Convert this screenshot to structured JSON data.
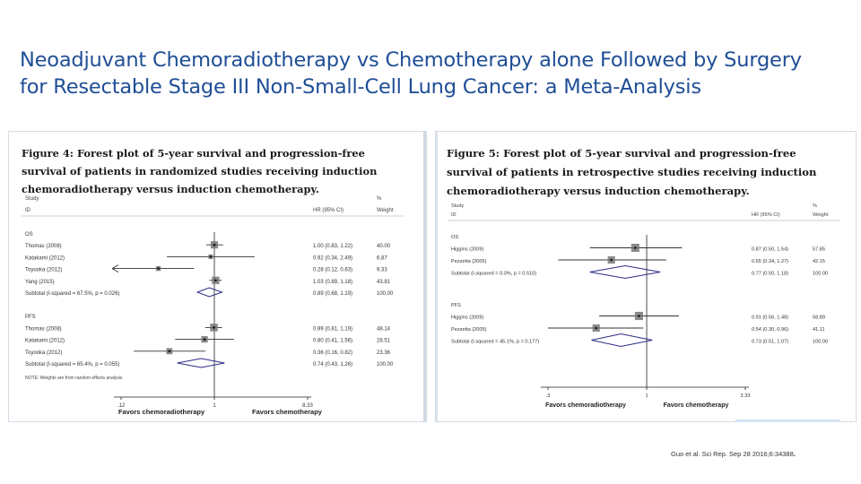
{
  "slide": {
    "title_line1": "Neoadjuvant Chemoradiotherapy vs Chemotherapy alone Followed by Surgery",
    "title_line2": "for Resectable Stage III Non-Small-Cell Lung Cancer: a Meta-Analysis",
    "citation": "Guo et al. Sci Rep. Sep 28 2016;6:34388",
    "colors": {
      "title": "#1f4e96",
      "forest_box": "#777777",
      "subtotal_diamond": "#2b2b88",
      "line": "#333333"
    }
  },
  "figure4": {
    "caption_line1": "Figure 4: Forest plot of 5-year survival and progression-free",
    "caption_line2": "survival of patients in randomized studies receiving induction",
    "caption_line3": "chemoradiotherapy versus induction chemotherapy.",
    "header": {
      "study_label": "Study",
      "id_label": "ID",
      "hr_label": "HR (95% CI)",
      "pct_label": "%",
      "weight_label": "Weight"
    },
    "groups": [
      {
        "name": "OS",
        "rows": [
          {
            "label": "Thomas (2008)",
            "hr": 1.0,
            "lo": 0.83,
            "hi": 1.22,
            "hr_text": "1.00 (0.83, 1.22)",
            "weight": "40.00"
          },
          {
            "label": "Katakami (2012)",
            "hr": 0.92,
            "lo": 0.34,
            "hi": 2.49,
            "hr_text": "0.92 (0.34, 2.49)",
            "weight": "6.87"
          },
          {
            "label": "Toyooka (2012)",
            "hr": 0.28,
            "lo": 0.12,
            "hi": 0.63,
            "hr_text": "0.28 (0.12, 0.63)",
            "weight": "9.33",
            "arrow_left": true
          },
          {
            "label": "Yang (2015)",
            "hr": 1.03,
            "lo": 0.89,
            "hi": 1.18,
            "hr_text": "1.03 (0.89, 1.18)",
            "weight": "43.81"
          }
        ],
        "subtotal": {
          "label": "Subtotal  (I-squared = 67.5%, p = 0.026)",
          "hr": 0.89,
          "lo": 0.68,
          "hi": 1.19,
          "hr_text": "0.89 (0.68, 1.19)",
          "weight": "100.00"
        }
      },
      {
        "name": "PFS",
        "rows": [
          {
            "label": "Thomas (2008)",
            "hr": 0.99,
            "lo": 0.81,
            "hi": 1.19,
            "hr_text": "0.99 (0.81, 1.19)",
            "weight": "48.14"
          },
          {
            "label": "Katakami (2012)",
            "hr": 0.8,
            "lo": 0.41,
            "hi": 1.56,
            "hr_text": "0.80 (0.41, 1.56)",
            "weight": "28.51"
          },
          {
            "label": "Toyooka (2012)",
            "hr": 0.36,
            "lo": 0.16,
            "hi": 0.82,
            "hr_text": "0.36 (0.16, 0.82)",
            "weight": "23.36"
          }
        ],
        "subtotal": {
          "label": "Subtotal  (I-squared = 65.4%, p = 0.055)",
          "hr": 0.74,
          "lo": 0.43,
          "hi": 1.26,
          "hr_text": "0.74 (0.43, 1.26)",
          "weight": "100.00"
        }
      }
    ],
    "note": "NOTE: Weights are from random effects analysis",
    "axis": {
      "min": 0.12,
      "max": 8.33,
      "ticks": [
        {
          "value": 0.12,
          "label": ".12"
        },
        {
          "value": 1,
          "label": "1"
        },
        {
          "value": 8.33,
          "label": "8.33"
        }
      ]
    },
    "favors_left": "Favors chemoradiotherapy",
    "favors_right": "Favors chemotherapy"
  },
  "figure5": {
    "caption_line1": "Figure 5: Forest plot of 5-year survival and progression-free",
    "caption_line2": "survival of patients in retrospective studies receiving induction",
    "caption_line3": "chemoradiotherapy versus induction chemotherapy.",
    "header": {
      "study_label": "Study",
      "id_label": "ID",
      "hr_label": "HR (95% CI)",
      "pct_label": "%",
      "weight_label": "Weight"
    },
    "groups": [
      {
        "name": "OS",
        "rows": [
          {
            "label": "Higgins (2009)",
            "hr": 0.87,
            "lo": 0.5,
            "hi": 1.54,
            "hr_text": "0.87 (0.50, 1.54)",
            "weight": "57.85"
          },
          {
            "label": "Pezzetta (2005)",
            "hr": 0.65,
            "lo": 0.34,
            "hi": 1.27,
            "hr_text": "0.65 (0.34, 1.27)",
            "weight": "42.15"
          }
        ],
        "subtotal": {
          "label": "Subtotal  (I-squared = 0.0%, p = 0.510)",
          "hr": 0.77,
          "lo": 0.5,
          "hi": 1.18,
          "hr_text": "0.77 (0.50, 1.18)",
          "weight": "100.00"
        }
      },
      {
        "name": "PFS",
        "rows": [
          {
            "label": "Higgins (2009)",
            "hr": 0.91,
            "lo": 0.56,
            "hi": 1.48,
            "hr_text": "0.91 (0.56, 1.48)",
            "weight": "58.89"
          },
          {
            "label": "Pezzetta (2005)",
            "hr": 0.54,
            "lo": 0.3,
            "hi": 0.96,
            "hr_text": "0.54 (0.30, 0.96)",
            "weight": "41.11"
          }
        ],
        "subtotal": {
          "label": "Subtotal  (I-squared = 45.1%, p = 0.177)",
          "hr": 0.73,
          "lo": 0.51,
          "hi": 1.07,
          "hr_text": "0.73 (0.51, 1.07)",
          "weight": "100.00"
        }
      }
    ],
    "axis": {
      "min": 0.3,
      "max": 3.33,
      "ticks": [
        {
          "value": 0.3,
          "label": ".3"
        },
        {
          "value": 1,
          "label": "1"
        },
        {
          "value": 3.33,
          "label": "3.33"
        }
      ]
    },
    "favors_left": "Favors chemoradiotherapy",
    "favors_right": "Favors chemotherapy"
  }
}
